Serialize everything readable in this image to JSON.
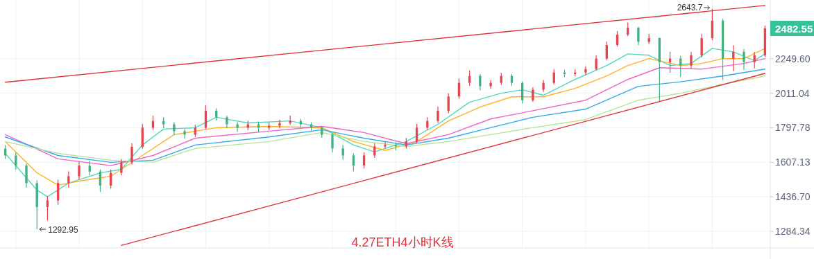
{
  "chart_data": {
    "type": "candlestick",
    "title": "4.27ETH4小时K线",
    "categories": [
      null,
      null,
      null,
      null,
      null,
      null,
      null,
      null,
      null,
      null,
      null,
      null,
      null,
      null,
      null,
      null,
      null,
      null,
      null,
      null,
      null,
      null,
      null,
      null,
      null,
      null,
      null,
      null,
      null,
      null,
      null,
      null,
      null,
      null,
      null,
      null,
      null,
      null,
      null,
      null,
      null,
      null,
      null,
      null,
      null,
      null,
      null,
      null,
      null,
      null,
      null,
      null,
      null,
      null,
      null,
      null,
      null,
      null,
      null,
      null,
      null,
      null,
      null,
      null,
      null,
      null,
      null,
      null,
      null,
      null,
      null,
      null,
      null
    ],
    "ohlc": [
      [
        1680,
        1700,
        1625,
        1643
      ],
      [
        1643,
        1660,
        1570,
        1590
      ],
      [
        1590,
        1600,
        1480,
        1502
      ],
      [
        1502,
        1515,
        1292.95,
        1390
      ],
      [
        1390,
        1440,
        1330,
        1420
      ],
      [
        1420,
        1520,
        1400,
        1502
      ],
      [
        1502,
        1560,
        1480,
        1536
      ],
      [
        1536,
        1610,
        1520,
        1590
      ],
      [
        1590,
        1615,
        1540,
        1560
      ],
      [
        1560,
        1570,
        1460,
        1490
      ],
      [
        1490,
        1570,
        1475,
        1553
      ],
      [
        1553,
        1625,
        1540,
        1607
      ],
      [
        1607,
        1710,
        1595,
        1690
      ],
      [
        1690,
        1820,
        1680,
        1798
      ],
      [
        1798,
        1870,
        1785,
        1838
      ],
      [
        1838,
        1860,
        1795,
        1818
      ],
      [
        1818,
        1830,
        1755,
        1778
      ],
      [
        1778,
        1790,
        1735,
        1758
      ],
      [
        1758,
        1815,
        1745,
        1798
      ],
      [
        1798,
        1935,
        1790,
        1900
      ],
      [
        1900,
        1915,
        1840,
        1860
      ],
      [
        1860,
        1870,
        1795,
        1818
      ],
      [
        1818,
        1830,
        1775,
        1798
      ],
      [
        1798,
        1840,
        1785,
        1818
      ],
      [
        1818,
        1835,
        1770,
        1798
      ],
      [
        1798,
        1830,
        1785,
        1810
      ],
      [
        1810,
        1845,
        1795,
        1826
      ],
      [
        1826,
        1870,
        1815,
        1838
      ],
      [
        1838,
        1850,
        1800,
        1818
      ],
      [
        1818,
        1830,
        1780,
        1798
      ],
      [
        1798,
        1805,
        1740,
        1758
      ],
      [
        1758,
        1765,
        1660,
        1681
      ],
      [
        1681,
        1700,
        1620,
        1643
      ],
      [
        1643,
        1655,
        1560,
        1590
      ],
      [
        1590,
        1660,
        1575,
        1643
      ],
      [
        1643,
        1710,
        1630,
        1692
      ],
      [
        1692,
        1720,
        1680,
        1700
      ],
      [
        1700,
        1715,
        1670,
        1692
      ],
      [
        1692,
        1740,
        1680,
        1719
      ],
      [
        1719,
        1820,
        1710,
        1798
      ],
      [
        1798,
        1860,
        1785,
        1838
      ],
      [
        1838,
        1925,
        1825,
        1900
      ],
      [
        1900,
        2010,
        1885,
        1990
      ],
      [
        1990,
        2110,
        1975,
        2080
      ],
      [
        2080,
        2165,
        2060,
        2127
      ],
      [
        2127,
        2140,
        2030,
        2057
      ],
      [
        2057,
        2100,
        2040,
        2080
      ],
      [
        2080,
        2150,
        2065,
        2127
      ],
      [
        2127,
        2140,
        2060,
        2080
      ],
      [
        2080,
        2090,
        1945,
        1966
      ],
      [
        1966,
        2050,
        1955,
        2034
      ],
      [
        2034,
        2100,
        2020,
        2080
      ],
      [
        2080,
        2175,
        2070,
        2151
      ],
      [
        2151,
        2170,
        2120,
        2140
      ],
      [
        2140,
        2175,
        2125,
        2151
      ],
      [
        2151,
        2195,
        2135,
        2175
      ],
      [
        2175,
        2275,
        2165,
        2250
      ],
      [
        2250,
        2380,
        2240,
        2352
      ],
      [
        2352,
        2460,
        2340,
        2432
      ],
      [
        2432,
        2530,
        2420,
        2487
      ],
      [
        2487,
        2495,
        2350,
        2376
      ],
      [
        2376,
        2440,
        2360,
        2405
      ],
      [
        2405,
        2410,
        1960,
        2225
      ],
      [
        2225,
        2300,
        2150,
        2250
      ],
      [
        2250,
        2270,
        2120,
        2200
      ],
      [
        2200,
        2300,
        2180,
        2275
      ],
      [
        2275,
        2440,
        2260,
        2405
      ],
      [
        2405,
        2643.7,
        2390,
        2545
      ],
      [
        2545,
        2560,
        2100,
        2250
      ],
      [
        2250,
        2350,
        2160,
        2300
      ],
      [
        2300,
        2320,
        2170,
        2225
      ],
      [
        2225,
        2300,
        2180,
        2275
      ],
      [
        2275,
        2505,
        2265,
        2482.55
      ]
    ],
    "colors": [
      "#3fb27f",
      "#3fb27f",
      "#3fb27f",
      "#3fb27f",
      "#e8424e",
      "#e8424e",
      "#e8424e",
      "#e8424e",
      "#3fb27f",
      "#3fb27f",
      "#e8424e",
      "#e8424e",
      "#e8424e",
      "#e8424e",
      "#e8424e",
      "#3fb27f",
      "#3fb27f",
      "#3fb27f",
      "#e8424e",
      "#e8424e",
      "#3fb27f",
      "#3fb27f",
      "#3fb27f",
      "#e8424e",
      "#3fb27f",
      "#e8424e",
      "#e8424e",
      "#e8424e",
      "#3fb27f",
      "#3fb27f",
      "#3fb27f",
      "#3fb27f",
      "#3fb27f",
      "#3fb27f",
      "#e8424e",
      "#e8424e",
      "#e8424e",
      "#3fb27f",
      "#e8424e",
      "#e8424e",
      "#e8424e",
      "#e8424e",
      "#e8424e",
      "#e8424e",
      "#e8424e",
      "#3fb27f",
      "#e8424e",
      "#e8424e",
      "#3fb27f",
      "#3fb27f",
      "#e8424e",
      "#e8424e",
      "#e8424e",
      "#3fb27f",
      "#e8424e",
      "#e8424e",
      "#e8424e",
      "#e8424e",
      "#e8424e",
      "#e8424e",
      "#3fb27f",
      "#e8424e",
      "#3fb27f",
      "#e8424e",
      "#3fb27f",
      "#e8424e",
      "#e8424e",
      "#e8424e",
      "#3fb27f",
      "#e8424e",
      "#3fb27f",
      "#e8424e",
      "#e8424e"
    ],
    "series": [
      {
        "type": "line",
        "color": "#4fd8bc",
        "values": [
          1654,
          null,
          null,
          1469,
          1437,
          null,
          1502,
          null,
          null,
          1553,
          null,
          1571,
          null,
          1700,
          null,
          1790,
          null,
          null,
          1798,
          null,
          1860,
          null,
          null,
          1826,
          null,
          null,
          null,
          1838,
          null,
          null,
          1798,
          null,
          null,
          1700,
          null,
          1662,
          null,
          null,
          1719,
          null,
          null,
          1818,
          null,
          null,
          1953,
          null,
          null,
          2011,
          null,
          2034,
          null,
          1998,
          null,
          null,
          2103,
          null,
          null,
          2200,
          null,
          2285,
          null,
          2275,
          null,
          2200,
          null,
          2215,
          null,
          2326,
          null,
          2300,
          null,
          2235,
          2285
        ]
      },
      {
        "type": "line",
        "color": "#ffb224",
        "values": [
          1719,
          null,
          null,
          1553,
          null,
          1492,
          null,
          1512,
          null,
          null,
          1536,
          null,
          null,
          1643,
          null,
          null,
          1758,
          null,
          null,
          null,
          1798,
          null,
          null,
          null,
          null,
          1806,
          null,
          null,
          null,
          null,
          1798,
          null,
          null,
          1719,
          null,
          null,
          1670,
          null,
          null,
          1719,
          null,
          null,
          1838,
          null,
          null,
          1923,
          null,
          null,
          1988,
          null,
          null,
          1988,
          null,
          null,
          2043,
          null,
          null,
          2127,
          null,
          2200,
          null,
          2250,
          null,
          null,
          2200,
          null,
          2215,
          null,
          2250,
          null,
          2250,
          null,
          2326
        ]
      },
      {
        "type": "line",
        "color": "#f064c4",
        "values": [
          1758,
          null,
          null,
          null,
          null,
          1625,
          null,
          null,
          null,
          null,
          1590,
          null,
          null,
          null,
          1643,
          null,
          null,
          null,
          1738,
          null,
          null,
          null,
          null,
          null,
          null,
          1778,
          null,
          null,
          null,
          null,
          1806,
          null,
          null,
          null,
          1770,
          null,
          null,
          null,
          1707,
          null,
          null,
          null,
          1758,
          null,
          null,
          null,
          1850,
          null,
          null,
          null,
          1900,
          null,
          null,
          null,
          null,
          1966,
          null,
          null,
          null,
          2103,
          null,
          null,
          2185,
          null,
          null,
          null,
          2175,
          null,
          null,
          null,
          2215,
          null,
          2250
        ]
      },
      {
        "type": "line",
        "color": "#33aaea",
        "values": [
          1745,
          null,
          null,
          null,
          null,
          1643,
          null,
          null,
          null,
          null,
          1607,
          null,
          null,
          null,
          1618,
          null,
          null,
          null,
          1700,
          null,
          null,
          null,
          null,
          null,
          null,
          1745,
          null,
          null,
          null,
          null,
          1786,
          null,
          null,
          null,
          1738,
          null,
          null,
          null,
          1700,
          null,
          null,
          null,
          1738,
          null,
          null,
          null,
          1798,
          null,
          null,
          null,
          1860,
          null,
          null,
          null,
          null,
          1910,
          null,
          null,
          null,
          null,
          2057,
          null,
          null,
          null,
          2087,
          null,
          null,
          null,
          2127,
          null,
          null,
          null,
          2175
        ]
      },
      {
        "type": "line",
        "color": "#b9e394",
        "values": [
          1719,
          null,
          null,
          null,
          null,
          1654,
          null,
          null,
          null,
          null,
          1618,
          null,
          null,
          null,
          1607,
          null,
          null,
          null,
          1681,
          null,
          null,
          null,
          null,
          null,
          null,
          1719,
          null,
          null,
          null,
          null,
          1770,
          null,
          null,
          null,
          1719,
          null,
          null,
          null,
          1692,
          null,
          null,
          null,
          1719,
          null,
          null,
          null,
          1758,
          null,
          null,
          null,
          1798,
          null,
          null,
          null,
          null,
          1846,
          null,
          null,
          null,
          null,
          1966,
          null,
          null,
          null,
          2011,
          null,
          null,
          null,
          2070,
          null,
          null,
          null,
          2127
        ]
      },
      {
        "type": "line",
        "color": "#e0303a",
        "values": [
          2084,
          null,
          null,
          null,
          null,
          null,
          null,
          null,
          null,
          null,
          null,
          null,
          null,
          null,
          null,
          null,
          null,
          null,
          null,
          null,
          null,
          null,
          null,
          null,
          null,
          null,
          null,
          null,
          null,
          null,
          null,
          null,
          null,
          null,
          null,
          null,
          null,
          null,
          null,
          null,
          null,
          null,
          null,
          null,
          null,
          null,
          null,
          null,
          null,
          null,
          null,
          null,
          null,
          null,
          null,
          null,
          null,
          null,
          null,
          null,
          null,
          null,
          null,
          null,
          null,
          null,
          null,
          null,
          null,
          null,
          null,
          null,
          2674
        ]
      },
      {
        "type": "line",
        "color": "#e0303a",
        "values": [
          null,
          null,
          null,
          null,
          null,
          null,
          null,
          null,
          null,
          null,
          null,
          1227,
          null,
          null,
          null,
          null,
          null,
          null,
          null,
          null,
          null,
          null,
          null,
          null,
          null,
          null,
          null,
          null,
          null,
          null,
          null,
          null,
          null,
          null,
          null,
          null,
          null,
          null,
          null,
          null,
          null,
          null,
          null,
          null,
          null,
          null,
          null,
          null,
          null,
          null,
          null,
          null,
          null,
          null,
          null,
          null,
          null,
          null,
          null,
          null,
          null,
          null,
          null,
          null,
          null,
          null,
          null,
          null,
          null,
          null,
          null,
          null,
          2145
        ]
      }
    ],
    "ylim": [
      1217,
      2722
    ],
    "log": true,
    "yticks": [
      {
        "value": 1284.34,
        "label": "1284.34"
      },
      {
        "value": 1436.7,
        "label": "1436.70"
      },
      {
        "value": 1607.13,
        "label": "1607.13"
      },
      {
        "value": 1797.78,
        "label": "1797.78"
      },
      {
        "value": 2011.04,
        "label": "2011.04"
      },
      {
        "value": 2249.6,
        "label": "2249.60"
      }
    ],
    "grid": true,
    "tick_labels": "y",
    "annotations": [
      "2643.7",
      "1292.95",
      "2482.55"
    ]
  }
}
